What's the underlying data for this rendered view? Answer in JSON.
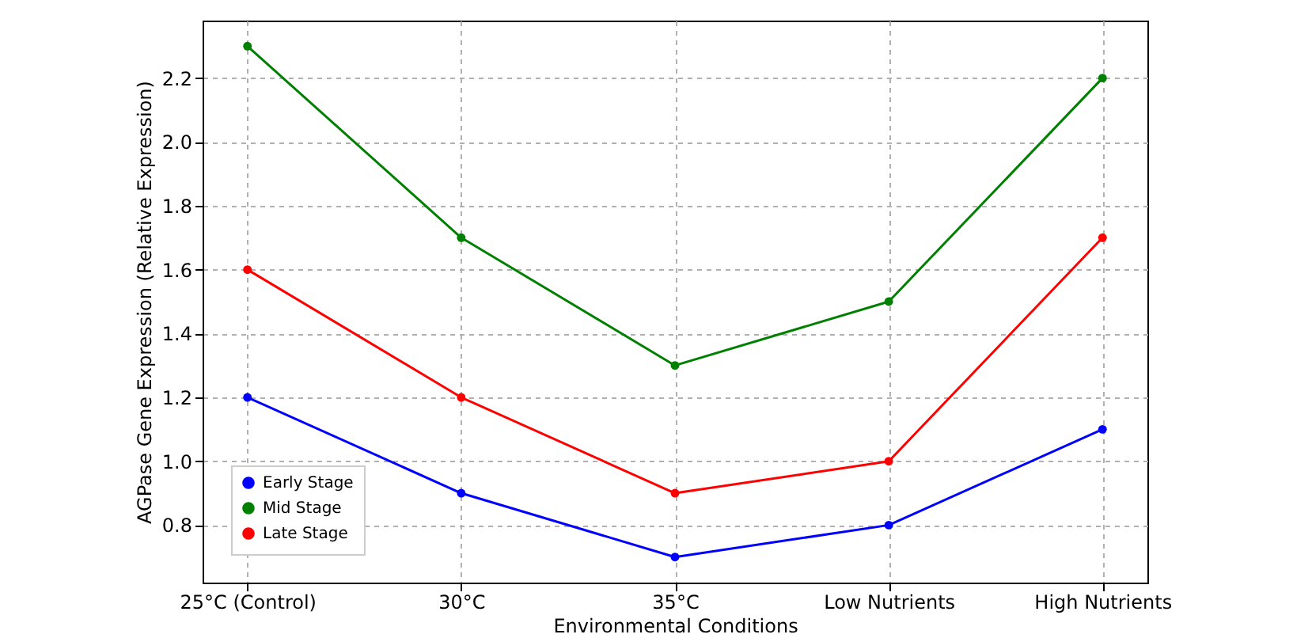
{
  "chart_data": {
    "type": "line",
    "xlabel": "Environmental Conditions",
    "ylabel": "AGPase Gene Expression (Relative Expression)",
    "categories": [
      "25°C (Control)",
      "30°C",
      "35°C",
      "Low Nutrients",
      "High Nutrients"
    ],
    "series": [
      {
        "name": "Early Stage",
        "color": "#0000ff",
        "values": [
          1.2,
          0.9,
          0.7,
          0.8,
          1.1
        ]
      },
      {
        "name": "Mid Stage",
        "color": "#008000",
        "values": [
          2.3,
          1.7,
          1.3,
          1.5,
          2.2
        ]
      },
      {
        "name": "Late Stage",
        "color": "#ff0000",
        "values": [
          1.6,
          1.2,
          0.9,
          1.0,
          1.7
        ]
      }
    ],
    "ylim": [
      0.62,
      2.38
    ],
    "yticks": [
      0.8,
      {
        "value": 1,
        "label": "1.0"
      },
      1.2,
      1.4,
      1.6,
      1.8,
      {
        "value": 2,
        "label": "2.0"
      },
      2.2
    ],
    "grid": true,
    "legend": "bottom left",
    "marker": "circle",
    "line_style": "solid"
  }
}
